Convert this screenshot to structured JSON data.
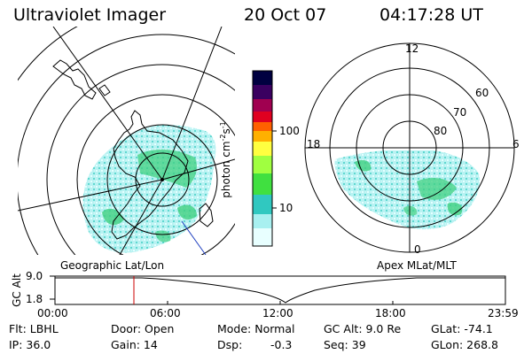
{
  "header": {
    "title": "Ultraviolet Imager",
    "date": "20 Oct 07",
    "time": "04:17:28 UT"
  },
  "left_panel": {
    "label": "Geographic Lat/Lon"
  },
  "colorbar": {
    "unit_label": "photon cm",
    "unit_exp1": "-2",
    "unit_mid": "s",
    "unit_exp2": "-1",
    "ticks": [
      "100",
      "10"
    ],
    "scale": "log",
    "colors": [
      "#000040",
      "#3a0060",
      "#a00050",
      "#e00020",
      "#ff6000",
      "#ffb000",
      "#ffff40",
      "#a0ff40",
      "#40e040",
      "#30c8c0",
      "#a8f0f0",
      "#e8ffff"
    ]
  },
  "right_panel": {
    "label": "Apex MLat/MLT",
    "mlt_labels": [
      "12",
      "18",
      "6",
      "0"
    ],
    "lat_labels": [
      "60",
      "70",
      "80"
    ]
  },
  "altitude_plot": {
    "ylabel": "GC Alt",
    "yticks": [
      "9.0",
      "1.8"
    ],
    "xticks": [
      "00:00",
      "06:00",
      "12:00",
      "18:00",
      "23:59"
    ],
    "marker_time_hours": 4.29,
    "marker_color": "#cc0000"
  },
  "info": {
    "filter": "Flt: LBHL",
    "ip": "IP: 36.0",
    "door": "Door: Open",
    "gain": "Gain: 14",
    "mode": "Mode: Normal",
    "dsp_label": "Dsp:",
    "dsp_value": "-0.3",
    "gc_alt": "GC Alt: 9.0 Re",
    "seq": "Seq: 39",
    "glat": "GLat: -74.1",
    "glon": "GLon: 268.8"
  }
}
